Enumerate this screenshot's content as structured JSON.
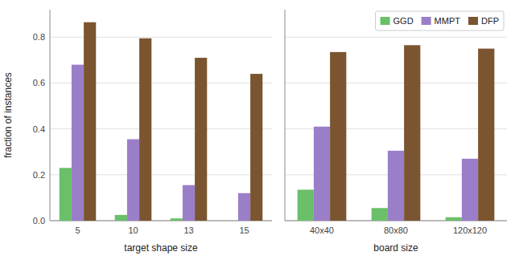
{
  "chart_data": [
    {
      "type": "bar",
      "categories": [
        "5",
        "10",
        "13",
        "15"
      ],
      "series": [
        {
          "name": "GGD",
          "color": "#6abf69",
          "values": [
            0.23,
            0.025,
            0.01,
            0.0
          ]
        },
        {
          "name": "MMPT",
          "color": "#9b7ec8",
          "values": [
            0.68,
            0.355,
            0.155,
            0.12
          ]
        },
        {
          "name": "DFP",
          "color": "#7a5530",
          "values": [
            0.865,
            0.795,
            0.71,
            0.64
          ]
        }
      ],
      "xlabel": "target shape size",
      "ylabel": "fraction of instances",
      "ylim": [
        0.0,
        0.92
      ],
      "yticks": [
        {
          "value": 0.0,
          "label": "0.0"
        },
        0.2,
        0.4,
        0.6,
        0.8
      ],
      "grid": true
    },
    {
      "type": "bar",
      "categories": [
        "40x40",
        "80x80",
        "120x120"
      ],
      "series": [
        {
          "name": "GGD",
          "color": "#6abf69",
          "values": [
            0.135,
            0.055,
            0.015
          ]
        },
        {
          "name": "MMPT",
          "color": "#9b7ec8",
          "values": [
            0.41,
            0.305,
            0.27
          ]
        },
        {
          "name": "DFP",
          "color": "#7a5530",
          "values": [
            0.735,
            0.765,
            0.75
          ]
        }
      ],
      "xlabel": "board size",
      "ylim": [
        0.0,
        0.92
      ],
      "yticks": [
        {
          "value": 0.0,
          "label": "0.0"
        },
        0.2,
        0.4,
        0.6,
        0.8
      ],
      "tick_labels": "x",
      "grid": true,
      "legend": "upper right"
    }
  ]
}
